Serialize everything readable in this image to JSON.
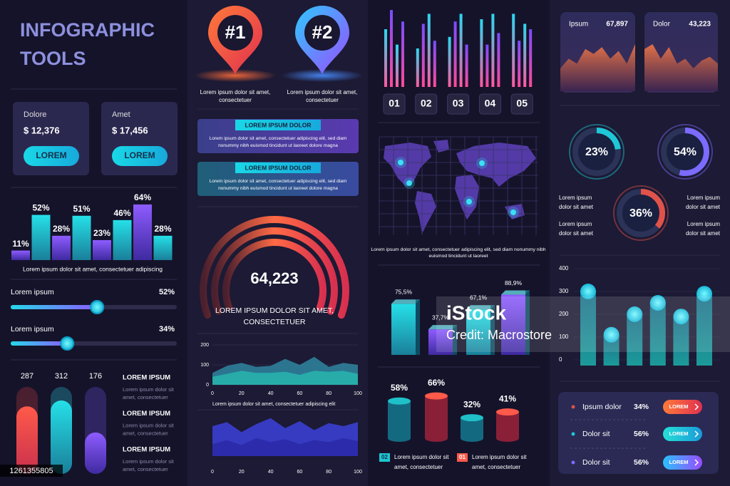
{
  "title": [
    "INFOGRAPHIC",
    "TOOLS"
  ],
  "cards": [
    {
      "label": "Dolore",
      "value": "$ 12,376",
      "button": "LOREM"
    },
    {
      "label": "Amet",
      "value": "$ 17,456",
      "button": "LOREM"
    }
  ],
  "bar_chart": {
    "values": [
      11,
      52,
      28,
      51,
      23,
      46,
      64,
      28
    ],
    "value_labels": [
      "11%",
      "52%",
      "28%",
      "51%",
      "23%",
      "46%",
      "64%",
      "28%"
    ],
    "caption": "Lorem ipsum dolor sit amet, consectetuer adipiscing"
  },
  "sliders": [
    {
      "label": "Lorem ipsum",
      "value": 52,
      "value_label": "52%"
    },
    {
      "label": "Lorem ipsum",
      "value": 34,
      "value_label": "34%"
    }
  ],
  "pill_bars": {
    "values": [
      287,
      312,
      176
    ]
  },
  "pill_legend": [
    {
      "title": "LOREM IPSUM",
      "lines": [
        "Lorem ipsum dolor sit",
        "amet, consectetuer"
      ]
    },
    {
      "title": "LOREM IPSUM",
      "lines": [
        "Lorem ipsum dolor sit",
        "amet, consectetuer"
      ]
    },
    {
      "title": "LOREM IPSUM",
      "lines": [
        "Lorem ipsum dolor sit",
        "amet, consectetuer"
      ]
    }
  ],
  "pins": [
    {
      "label": "#1",
      "lines": [
        "Lorem ipsum dolor sit amet,",
        "consectetuer"
      ]
    },
    {
      "label": "#2",
      "lines": [
        "Lorem ipsum dolor sit amet,",
        "consectetuer"
      ]
    }
  ],
  "banners": [
    {
      "title": "LOREM IPSUM DOLOR",
      "lines": [
        "Lorem ipsum dolor sit amet, consectetuer adipiscing elit, sed diam",
        "nonummy nibh euismod tincidunt ut laoreet dolore magna"
      ]
    },
    {
      "title": "LOREM IPSUM DOLOR",
      "lines": [
        "Lorem ipsum dolor sit amet, consectetuer adipiscing elit, sed diam",
        "nonummy nibh euismod tincidunt ut laoreet dolore magna"
      ]
    }
  ],
  "gauge": {
    "value": "64,223",
    "lines": [
      "LOREM IPSUM DOLOR SIT AMET,",
      "CONSECTETUER"
    ]
  },
  "area_chart_1": {
    "x": [
      0,
      10,
      20,
      30,
      40,
      50,
      60,
      70,
      80,
      90,
      100
    ],
    "xlim": [
      0,
      100
    ],
    "ylim": [
      0,
      200
    ],
    "xticks": [
      0,
      20,
      40,
      60,
      80,
      100
    ],
    "yticks": [
      0,
      100,
      200
    ],
    "series": [
      {
        "color": "#2f7f9a",
        "values": [
          60,
          95,
          110,
          90,
          95,
          130,
          100,
          140,
          90,
          110,
          100
        ]
      },
      {
        "color": "#27b3ad",
        "values": [
          40,
          55,
          70,
          60,
          60,
          65,
          50,
          70,
          65,
          70,
          55
        ]
      }
    ],
    "caption": "Lorem ipsum dolor sit amet, consectetuer adipiscing elit"
  },
  "area_chart_2": {
    "x": [
      0,
      10,
      20,
      30,
      40,
      50,
      60,
      70,
      80,
      90,
      100
    ],
    "xlim": [
      0,
      100
    ],
    "ylim": [
      0,
      200
    ],
    "xticks": [
      0,
      20,
      40,
      60,
      80,
      100
    ],
    "series": [
      {
        "color": "#3b3fd0",
        "values": [
          150,
          170,
          120,
          160,
          190,
          140,
          175,
          130,
          165,
          150,
          170
        ]
      },
      {
        "color": "#2a2aa8",
        "values": [
          60,
          80,
          55,
          90,
          70,
          85,
          60,
          80,
          70,
          90,
          75
        ]
      }
    ]
  },
  "bar_groups": {
    "labels": [
      "01",
      "02",
      "03",
      "04",
      "05"
    ],
    "values": [
      [
        75,
        100,
        55,
        85
      ],
      [
        50,
        82,
        95,
        60
      ],
      [
        65,
        85,
        95,
        55
      ],
      [
        88,
        55,
        95,
        70
      ],
      [
        95,
        60,
        82,
        75
      ]
    ]
  },
  "map": {
    "lines": [
      "Lorem ipsum dolor sit amet, consectetuer adipiscing elit, sed diam nonummy nibh",
      "euismod tincidunt ut laoreet"
    ]
  },
  "bars_3d": {
    "values": [
      75.5,
      37.7,
      67.1,
      88.9
    ],
    "value_labels": [
      "75,5%",
      "37,7%",
      "67,1%",
      "88,9%"
    ]
  },
  "cylinders": {
    "values": [
      58,
      66,
      32,
      41
    ],
    "value_labels": [
      "58%",
      "66%",
      "32%",
      "41%"
    ]
  },
  "cylinder_legend": [
    {
      "tag": "02",
      "lines": [
        "Lorem ipsum dolor sit",
        "amet, consectetuer"
      ]
    },
    {
      "tag": "01",
      "lines": [
        "Lorem ipsum dolor sit",
        "amet, consectetuer"
      ]
    }
  ],
  "mini_areas": [
    {
      "label": "Ipsum",
      "value": "67,897",
      "values": [
        50,
        60,
        55,
        70,
        65,
        72,
        60,
        68,
        55,
        75
      ]
    },
    {
      "label": "Dolor",
      "value": "43,223",
      "values": [
        70,
        75,
        60,
        72,
        55,
        60,
        50,
        58,
        62,
        55
      ]
    }
  ],
  "donuts": [
    {
      "value": 23,
      "value_label": "23%"
    },
    {
      "value": 54,
      "value_label": "54%"
    },
    {
      "value": 36,
      "value_label": "36%"
    }
  ],
  "donut_notes": [
    [
      "Lorem ipsum",
      "dolor sit amet"
    ],
    [
      "Lorem ipsum",
      "dolor sit amet"
    ],
    [
      "Lorem ipsum",
      "dolor sit amet"
    ],
    [
      "Lorem ipsum",
      "dolor sit amet"
    ]
  ],
  "column_chart": {
    "ylim": [
      0,
      400
    ],
    "yticks": [
      0,
      100,
      200,
      300,
      400
    ],
    "values": [
      300,
      110,
      200,
      250,
      190,
      290
    ]
  },
  "list": [
    {
      "label": "Ipsum dolor",
      "value": "34%",
      "button": "LOREM"
    },
    {
      "label": "Dolor sit",
      "value": "56%",
      "button": "LOREM"
    },
    {
      "label": "Dolor sit",
      "value": "56%",
      "button": "LOREM"
    }
  ],
  "watermark": {
    "brand": "iStock",
    "credit": "Credit: Macrostore",
    "id": "1261355805"
  }
}
